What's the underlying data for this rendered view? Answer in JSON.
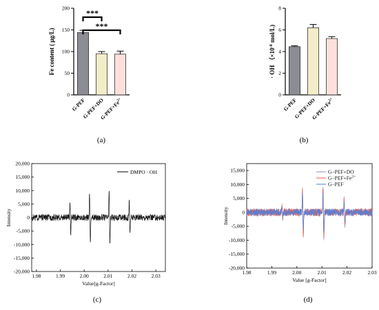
{
  "chart_data": [
    {
      "id": "a",
      "type": "bar",
      "panel_label": "(a)",
      "ylabel": "Fe content ( μg/L)",
      "ylim": [
        0,
        200
      ],
      "yticks": [
        0,
        50,
        100,
        150,
        200
      ],
      "categories": [
        "G-PEF",
        "G-PEF+DO",
        "G-PEF+Fe2+"
      ],
      "category_labels": [
        {
          "main": "G-PEF",
          "sup": ""
        },
        {
          "main": "G-PEF+DO",
          "sup": ""
        },
        {
          "main": "G-PEF+Fe",
          "sup": "2+"
        }
      ],
      "values": [
        144,
        95,
        94
      ],
      "errors": [
        5,
        5,
        7
      ],
      "colors": [
        "#8c8c94",
        "#f3ecc8",
        "#fde0dc"
      ],
      "significance": [
        {
          "from": 0,
          "to": 1,
          "label": "***"
        },
        {
          "from": 0,
          "to": 2,
          "label": "***"
        }
      ]
    },
    {
      "id": "b",
      "type": "bar",
      "panel_label": "(b)",
      "ylabel": "· OH （×10",
      "ylabel_sup": "-6",
      "ylabel_tail": " mol/L)",
      "ylim": [
        0,
        8
      ],
      "yticks": [
        0,
        2,
        4,
        6,
        8
      ],
      "categories": [
        "G-PEF",
        "G-PEF+DO",
        "G-PEF+Fe2+"
      ],
      "category_labels": [
        {
          "main": "G-PEF",
          "sup": ""
        },
        {
          "main": "G-PEF+DO",
          "sup": ""
        },
        {
          "main": "G-PEF+Fe",
          "sup": "2+"
        }
      ],
      "values": [
        4.45,
        6.2,
        5.2
      ],
      "errors": [
        0.08,
        0.3,
        0.18
      ],
      "colors": [
        "#8c8c94",
        "#f3ecc8",
        "#fde0dc"
      ]
    },
    {
      "id": "c",
      "type": "line",
      "panel_label": "(c)",
      "xlabel": "Value[g-Factor]",
      "ylabel": "Intensity",
      "xlim": [
        1.978,
        2.034
      ],
      "ylim": [
        -20000,
        20000
      ],
      "xticks": [
        "1.98",
        "1.99",
        "2.00",
        "2.01",
        "2.02",
        "2.03"
      ],
      "xtick_values": [
        1.98,
        1.99,
        2.0,
        2.01,
        2.02,
        2.03
      ],
      "yticks": [
        "-20,000",
        "-15,000",
        "-10,000",
        "-5,000",
        "0",
        "5,000",
        "10,000",
        "15,000",
        "20,000"
      ],
      "ytick_values": [
        -20000,
        -15000,
        -10000,
        -5000,
        0,
        5000,
        10000,
        15000,
        20000
      ],
      "legend": [
        "DMPO · OH"
      ],
      "series": [
        {
          "name": "DMPO · OH",
          "color": "#000000",
          "peaks": [
            {
              "g": 1.9942,
              "amp": 9000
            },
            {
              "g": 2.0024,
              "amp": 14800
            },
            {
              "g": 2.0106,
              "amp": 15800
            },
            {
              "g": 2.019,
              "amp": 9200
            }
          ],
          "noise": 1200
        }
      ]
    },
    {
      "id": "d",
      "type": "line",
      "panel_label": "(d)",
      "xlabel": "Value [g-Factor]",
      "ylabel": "Intensity",
      "xlim": [
        1.98,
        2.03
      ],
      "ylim": [
        -20000,
        17500
      ],
      "xticks": [
        "1.98",
        "1.99",
        "2.00",
        "2.01",
        "2.02",
        "2.03"
      ],
      "xtick_values": [
        1.98,
        1.99,
        2.0,
        2.01,
        2.02,
        2.03
      ],
      "yticks": [
        "-20,000",
        "-15,000",
        "-10,000",
        "-5,000",
        "0",
        "5,000",
        "10,000",
        "15,000"
      ],
      "ytick_values": [
        -20000,
        -15000,
        -10000,
        -5000,
        0,
        5000,
        10000,
        15000
      ],
      "legend_entries": [
        {
          "main": "G−PEF+DO",
          "sup": ""
        },
        {
          "main": "G−PEF+Fe",
          "sup": "2+"
        },
        {
          "main": "G−PEF",
          "sup": ""
        }
      ],
      "series": [
        {
          "name": "G−PEF+DO",
          "color": "#8b8fb0",
          "peaks": [
            {
              "g": 1.9942,
              "amp": 3500
            },
            {
              "g": 2.0024,
              "amp": 13000
            },
            {
              "g": 2.0106,
              "amp": 14000
            },
            {
              "g": 2.019,
              "amp": 7500
            }
          ],
          "noise": 1400
        },
        {
          "name": "G−PEF+Fe2+",
          "color": "#e8584a",
          "peaks": [
            {
              "g": 1.9942,
              "amp": 3200
            },
            {
              "g": 2.0024,
              "amp": 12500
            },
            {
              "g": 2.0106,
              "amp": 13500
            },
            {
              "g": 2.019,
              "amp": 7000
            }
          ],
          "noise": 1400
        },
        {
          "name": "G−PEF",
          "color": "#4a7fe0",
          "peaks": [
            {
              "g": 1.9942,
              "amp": 2800
            },
            {
              "g": 2.0024,
              "amp": 10500
            },
            {
              "g": 2.0106,
              "amp": 11500
            },
            {
              "g": 2.019,
              "amp": 6000
            }
          ],
          "noise": 1300
        }
      ]
    }
  ]
}
